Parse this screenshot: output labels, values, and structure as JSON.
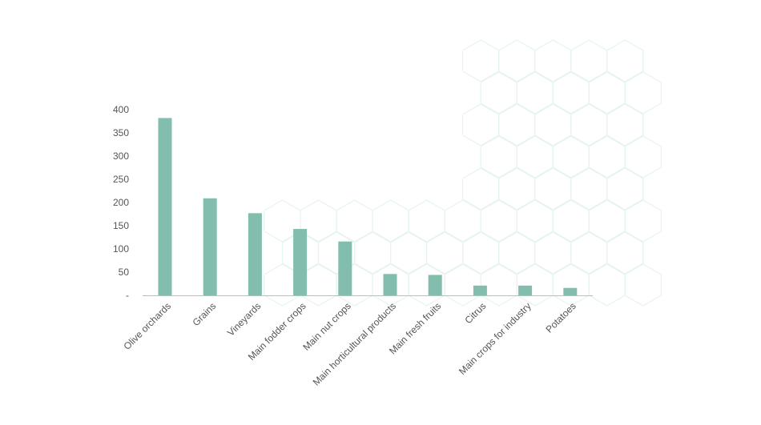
{
  "chart_data": {
    "type": "bar",
    "categories": [
      "Olive orchards",
      "Grains",
      "Vineyards",
      "Main fodder crops",
      "Main nut crops",
      "Main horticultural products",
      "Main fresh fruits",
      "Citrus",
      "Main crops for industry",
      "Potatoes"
    ],
    "values": [
      382,
      209,
      177,
      143,
      116,
      46,
      44,
      21,
      21,
      16
    ],
    "ylim": [
      0,
      400
    ],
    "yticks": [
      0,
      50,
      100,
      150,
      200,
      250,
      300,
      350,
      400
    ],
    "ytick_labels": [
      "-",
      "50",
      "100",
      "150",
      "200",
      "250",
      "300",
      "350",
      "400"
    ],
    "grid": false,
    "legend": "none",
    "title": "",
    "xlabel": "",
    "ylabel": "",
    "colors": {
      "bar": "#82bdae",
      "axis": "#bdbdbd",
      "text": "#555555",
      "hex_pattern": "#e6f4f0"
    }
  }
}
